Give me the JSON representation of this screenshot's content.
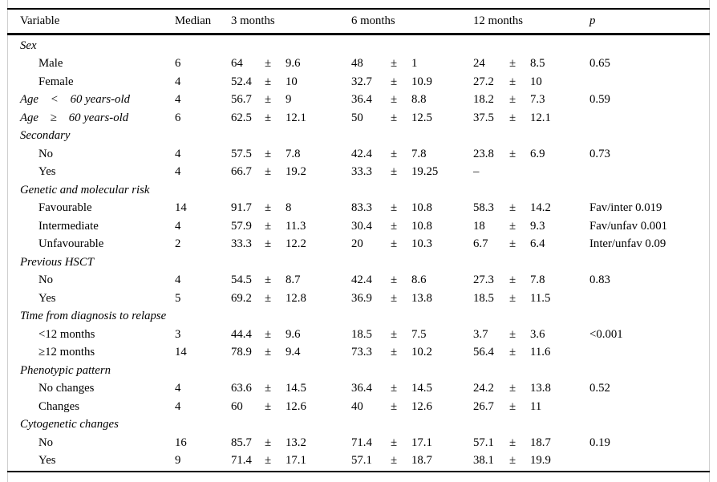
{
  "table": {
    "pm": "±",
    "columns": [
      {
        "label": "Variable"
      },
      {
        "label": "Median"
      },
      {
        "label": "3 months"
      },
      {
        "label": "6 months"
      },
      {
        "label": "12 months"
      },
      {
        "label": "p"
      }
    ],
    "rows": [
      {
        "type": "section",
        "label": "Sex"
      },
      {
        "type": "data",
        "indent": true,
        "label": "Male",
        "median": "6",
        "m3": [
          "64",
          "9.6"
        ],
        "m6": [
          "48",
          "1"
        ],
        "m12": [
          "24",
          "8.5"
        ],
        "p": "0.65"
      },
      {
        "type": "data",
        "indent": true,
        "label": "Female",
        "median": "4",
        "m3": [
          "52.4",
          "10"
        ],
        "m6": [
          "32.7",
          "10.9"
        ],
        "m12": [
          "27.2",
          "10"
        ],
        "p": ""
      },
      {
        "type": "data",
        "italic": true,
        "label": "Age < 60 years-old",
        "median": "4",
        "m3": [
          "56.7",
          "9"
        ],
        "m6": [
          "36.4",
          "8.8"
        ],
        "m12": [
          "18.2",
          "7.3"
        ],
        "p": "0.59"
      },
      {
        "type": "data",
        "italic": true,
        "label": "Age ≥ 60 years-old",
        "median": "6",
        "m3": [
          "62.5",
          "12.1"
        ],
        "m6": [
          "50",
          "12.5"
        ],
        "m12": [
          "37.5",
          "12.1"
        ],
        "p": ""
      },
      {
        "type": "section",
        "label": "Secondary"
      },
      {
        "type": "data",
        "indent": true,
        "label": "No",
        "median": "4",
        "m3": [
          "57.5",
          "7.8"
        ],
        "m6": [
          "42.4",
          "7.8"
        ],
        "m12": [
          "23.8",
          "6.9"
        ],
        "p": "0.73"
      },
      {
        "type": "data",
        "indent": true,
        "label": "Yes",
        "median": "4",
        "m3": [
          "66.7",
          "19.2"
        ],
        "m6": [
          "33.3",
          "19.25"
        ],
        "m12": [
          "–"
        ],
        "p": ""
      },
      {
        "type": "section",
        "label": "Genetic and molecular risk"
      },
      {
        "type": "data",
        "indent": true,
        "label": "Favourable",
        "median": "14",
        "m3": [
          "91.7",
          "8"
        ],
        "m6": [
          "83.3",
          "10.8"
        ],
        "m12": [
          "58.3",
          "14.2"
        ],
        "p": "Fav/inter 0.019"
      },
      {
        "type": "data",
        "indent": true,
        "label": "Intermediate",
        "median": "4",
        "m3": [
          "57.9",
          "11.3"
        ],
        "m6": [
          "30.4",
          "10.8"
        ],
        "m12": [
          "18",
          "9.3"
        ],
        "p": "Fav/unfav 0.001"
      },
      {
        "type": "data",
        "indent": true,
        "label": "Unfavourable",
        "median": "2",
        "m3": [
          "33.3",
          "12.2"
        ],
        "m6": [
          "20",
          "10.3"
        ],
        "m12": [
          "6.7",
          "6.4"
        ],
        "p": "Inter/unfav 0.09"
      },
      {
        "type": "section",
        "label": "Previous HSCT"
      },
      {
        "type": "data",
        "indent": true,
        "label": "No",
        "median": "4",
        "m3": [
          "54.5",
          "8.7"
        ],
        "m6": [
          "42.4",
          "8.6"
        ],
        "m12": [
          "27.3",
          "7.8"
        ],
        "p": "0.83"
      },
      {
        "type": "data",
        "indent": true,
        "label": "Yes",
        "median": "5",
        "m3": [
          "69.2",
          "12.8"
        ],
        "m6": [
          "36.9",
          "13.8"
        ],
        "m12": [
          "18.5",
          "11.5"
        ],
        "p": ""
      },
      {
        "type": "section",
        "label": "Time from diagnosis to relapse"
      },
      {
        "type": "data",
        "indent": true,
        "label": "<12 months",
        "median": "3",
        "m3": [
          "44.4",
          "9.6"
        ],
        "m6": [
          "18.5",
          "7.5"
        ],
        "m12": [
          "3.7",
          "3.6"
        ],
        "p": "<0.001"
      },
      {
        "type": "data",
        "indent": true,
        "label": "≥12 months",
        "median": "14",
        "m3": [
          "78.9",
          "9.4"
        ],
        "m6": [
          "73.3",
          "10.2"
        ],
        "m12": [
          "56.4",
          "11.6"
        ],
        "p": ""
      },
      {
        "type": "section",
        "label": "Phenotypic pattern"
      },
      {
        "type": "data",
        "indent": true,
        "label": "No changes",
        "median": "4",
        "m3": [
          "63.6",
          "14.5"
        ],
        "m6": [
          "36.4",
          "14.5"
        ],
        "m12": [
          "24.2",
          "13.8"
        ],
        "p": "0.52"
      },
      {
        "type": "data",
        "indent": true,
        "label": "Changes",
        "median": "4",
        "m3": [
          "60",
          "12.6"
        ],
        "m6": [
          "40",
          "12.6"
        ],
        "m12": [
          "26.7",
          "11"
        ],
        "p": ""
      },
      {
        "type": "section",
        "label": "Cytogenetic changes"
      },
      {
        "type": "data",
        "indent": true,
        "label": "No",
        "median": "16",
        "m3": [
          "85.7",
          "13.2"
        ],
        "m6": [
          "71.4",
          "17.1"
        ],
        "m12": [
          "57.1",
          "18.7"
        ],
        "p": "0.19"
      },
      {
        "type": "data",
        "indent": true,
        "label": "Yes",
        "median": "9",
        "m3": [
          "71.4",
          "17.1"
        ],
        "m6": [
          "57.1",
          "18.7"
        ],
        "m12": [
          "38.1",
          "19.9"
        ],
        "p": ""
      }
    ]
  }
}
